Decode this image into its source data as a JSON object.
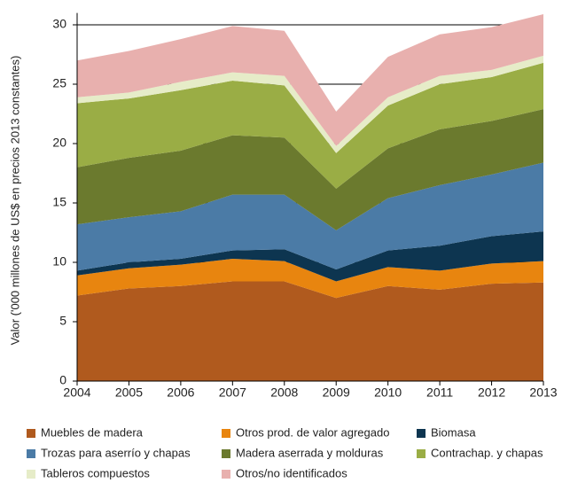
{
  "chart_data": {
    "type": "stacked_area",
    "y_label": "Valor ('000 millones de US$ en precios 2013 constantes)",
    "x": [
      2004,
      2005,
      2006,
      2007,
      2008,
      2009,
      2010,
      2011,
      2012,
      2013
    ],
    "xlim": [
      2004,
      2013
    ],
    "xticks": [
      2004,
      2005,
      2006,
      2007,
      2008,
      2009,
      2010,
      2011,
      2012,
      2013
    ],
    "ylim": [
      0,
      31
    ],
    "yticks": [
      0,
      5,
      10,
      15,
      20,
      25,
      30
    ],
    "grid": true,
    "series": [
      {
        "name": "Muebles de madera",
        "color": "#b05a1e",
        "values": [
          7.2,
          7.8,
          8.0,
          8.4,
          8.4,
          7.0,
          8.0,
          7.7,
          8.2,
          8.3
        ]
      },
      {
        "name": "Otros prod. de valor agregado",
        "color": "#e8850f",
        "values": [
          1.7,
          1.7,
          1.8,
          1.9,
          1.7,
          1.4,
          1.6,
          1.6,
          1.7,
          1.8
        ]
      },
      {
        "name": "Biomasa",
        "color": "#0d3550",
        "values": [
          0.4,
          0.5,
          0.5,
          0.7,
          1.0,
          1.0,
          1.4,
          2.1,
          2.3,
          2.5
        ]
      },
      {
        "name": "Trozas para aserrío y chapas",
        "color": "#4b7ba6",
        "values": [
          3.9,
          3.8,
          4.0,
          4.7,
          4.6,
          3.3,
          4.4,
          5.1,
          5.2,
          5.8
        ]
      },
      {
        "name": "Madera aserrada y molduras",
        "color": "#6b7a2e",
        "values": [
          4.8,
          5.0,
          5.1,
          5.0,
          4.8,
          3.5,
          4.2,
          4.7,
          4.5,
          4.5
        ]
      },
      {
        "name": "Contrachap. y chapas",
        "color": "#9aad45",
        "values": [
          5.4,
          5.0,
          5.1,
          4.6,
          4.4,
          3.0,
          3.6,
          3.8,
          3.7,
          3.9
        ]
      },
      {
        "name": "Tableros compuestos",
        "color": "#e6ecc8",
        "values": [
          0.5,
          0.5,
          0.7,
          0.7,
          0.8,
          0.6,
          0.7,
          0.7,
          0.6,
          0.6
        ]
      },
      {
        "name": "Otros/no identificados",
        "color": "#e8b0ae",
        "values": [
          3.1,
          3.5,
          3.6,
          3.9,
          3.8,
          2.9,
          3.4,
          3.5,
          3.6,
          3.5
        ]
      }
    ]
  }
}
